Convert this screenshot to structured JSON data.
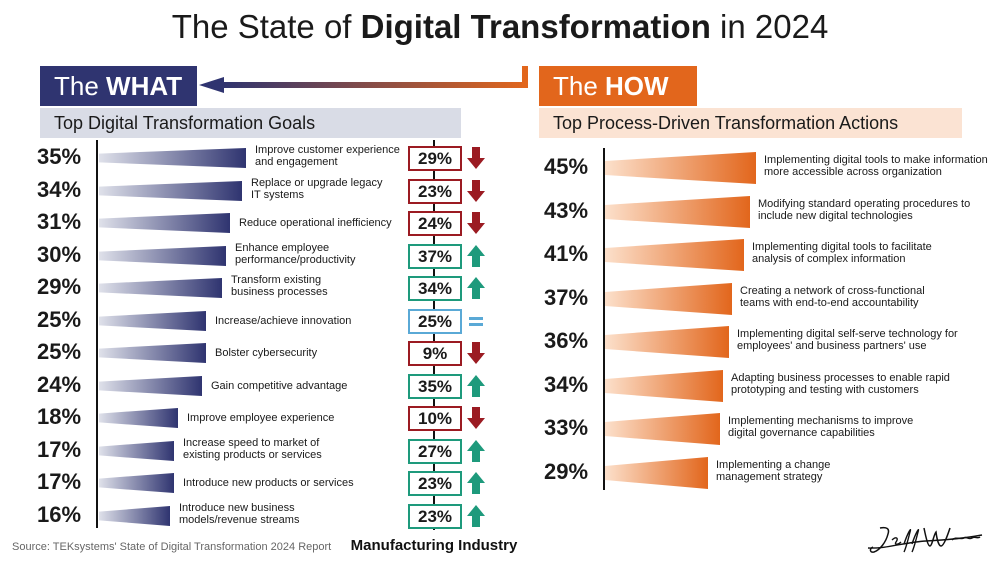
{
  "title": {
    "prefix": "The State of ",
    "bold": "Digital Transformation",
    "suffix": " in 2024"
  },
  "what_header": {
    "prefix": "The ",
    "bold": "WHAT"
  },
  "how_header": {
    "prefix": "The ",
    "bold": "HOW"
  },
  "what_subtitle": "Top Digital Transformation Goals",
  "how_subtitle": "Top Process-Driven Transformation Actions",
  "source": "Source: TEKsystems' State of Digital Transformation 2024 Report",
  "manufacturing_title": "Manufacturing Industry",
  "signature": "Jeff Winter",
  "colors": {
    "navy": "#2f3470",
    "orange": "#e2661c",
    "down": "#9b1b22",
    "up": "#1e9a7c",
    "equal": "#5aa9d6"
  },
  "chart_data": [
    {
      "type": "bar",
      "orientation": "horizontal",
      "title": "Top Digital Transformation Goals",
      "categories": [
        "Improve customer experience\nand engagement",
        "Replace or upgrade legacy\nIT systems",
        "Reduce operational inefficiency",
        "Enhance employee\nperformance/productivity",
        "Transform existing\nbusiness processes",
        "Increase/achieve innovation",
        "Bolster cybersecurity",
        "Gain competitive advantage",
        "Improve employee experience",
        "Increase speed to market of\nexisting products or services",
        "Introduce new products or services",
        "Introduce new business\nmodels/revenue streams"
      ],
      "values": [
        35,
        34,
        31,
        30,
        29,
        25,
        25,
        24,
        18,
        17,
        17,
        16
      ],
      "labels": [
        "35%",
        "34%",
        "31%",
        "30%",
        "29%",
        "25%",
        "25%",
        "24%",
        "18%",
        "17%",
        "17%",
        "16%"
      ],
      "color": "#2f3470"
    },
    {
      "type": "table",
      "title": "Manufacturing Industry",
      "values": [
        29,
        23,
        24,
        37,
        34,
        25,
        9,
        35,
        10,
        27,
        23,
        23
      ],
      "labels": [
        "29%",
        "23%",
        "24%",
        "37%",
        "34%",
        "25%",
        "9%",
        "35%",
        "10%",
        "27%",
        "23%",
        "23%"
      ],
      "trend": [
        "down",
        "down",
        "down",
        "up",
        "up",
        "equal",
        "down",
        "up",
        "down",
        "up",
        "up",
        "up"
      ]
    },
    {
      "type": "bar",
      "orientation": "horizontal",
      "title": "Top Process-Driven Transformation Actions",
      "categories": [
        "Implementing digital tools to make information\nmore accessible across organization",
        "Modifying standard operating procedures to\ninclude new digital technologies",
        "Implementing digital tools to facilitate\nanalysis of complex information",
        "Creating a network of cross-functional\nteams with end-to-end accountability",
        "Implementing digital self-serve technology for\nemployees' and business partners' use",
        "Adapting business processes to enable rapid\nprototyping and testing with customers",
        "Implementing mechanisms to improve\ndigital governance capabilities",
        "Implementing a change\nmanagement strategy"
      ],
      "values": [
        45,
        43,
        41,
        37,
        36,
        34,
        33,
        29
      ],
      "labels": [
        "45%",
        "43%",
        "41%",
        "37%",
        "36%",
        "34%",
        "33%",
        "29%"
      ],
      "color": "#e2661c"
    }
  ]
}
